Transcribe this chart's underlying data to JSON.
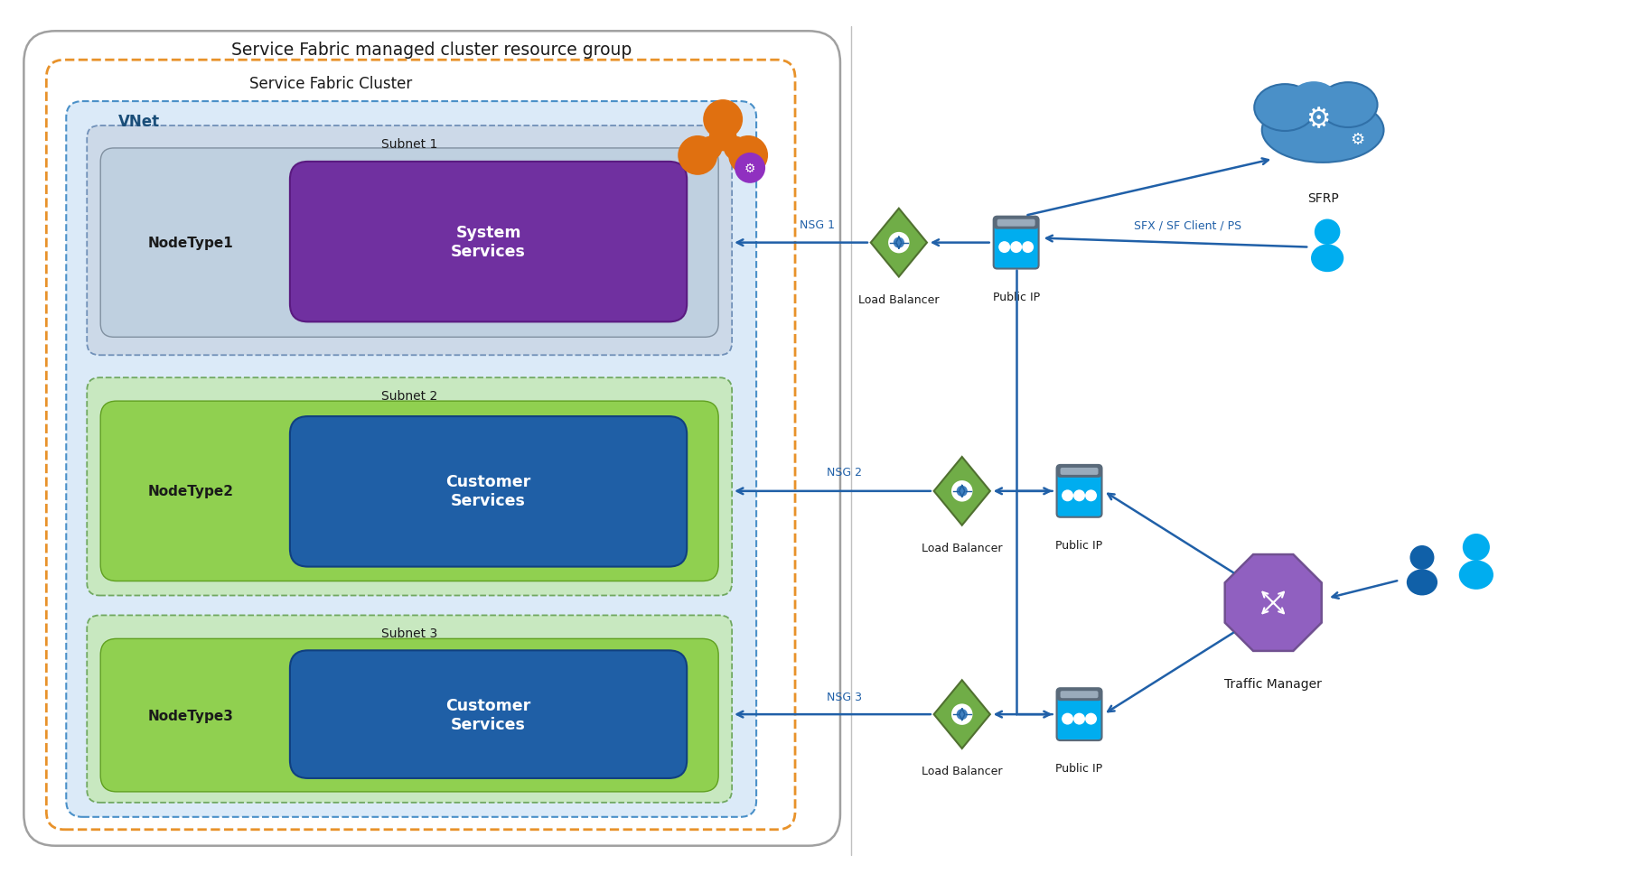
{
  "title": "Service Fabric managed cluster resource group",
  "sf_cluster_label": "Service Fabric Cluster",
  "vnet_label": "VNet",
  "subnet1_label": "Subnet 1",
  "subnet2_label": "Subnet 2",
  "subnet3_label": "Subnet 3",
  "nodetype1_label": "NodeType1",
  "nodetype2_label": "NodeType2",
  "nodetype3_label": "NodeType3",
  "system_services_label": "System\nServices",
  "customer_services_label": "Customer\nServices",
  "load_balancer_label": "Load Balancer",
  "public_ip_label": "Public IP",
  "sfrp_label": "SFRP",
  "traffic_manager_label": "Traffic Manager",
  "nsg1_label": "NSG 1",
  "nsg2_label": "NSG 2",
  "nsg3_label": "NSG 3",
  "sfx_label": "SFX / SF Client / PS",
  "bg_color": "#ffffff",
  "outer_box_bg": "#ffffff",
  "outer_box_edge": "#a0a0a0",
  "sf_cluster_edge": "#e8922a",
  "sf_cluster_bg": "#ffffff",
  "vnet_bg": "#dbeaf8",
  "vnet_edge": "#4a90c8",
  "subnet1_bg": "#ccd9e8",
  "subnet1_edge": "#7090b8",
  "subnet2_bg": "#c8e8c0",
  "subnet2_edge": "#70a860",
  "subnet3_bg": "#c8e8c0",
  "subnet3_edge": "#70a860",
  "nodetype1_bg": "#bfd0e0",
  "nodetype1_edge": "#8090a0",
  "nodetype23_bg": "#90d050",
  "nodetype23_edge": "#60a020",
  "system_svc_bg": "#7030a0",
  "system_svc_edge": "#5a1a80",
  "customer_svc_bg": "#1f5fa6",
  "customer_svc_edge": "#104080",
  "arrow_color": "#2060a8",
  "lb_green": "#70ad47",
  "lb_edge": "#507030",
  "pubip_body": "#00adef",
  "pubip_top": "#5a6a7a",
  "pubip_topbar": "#9aabbb",
  "sfrp_cloud_color": "#4a90c8",
  "sfrp_cloud_edge": "#3070a8",
  "tm_purple": "#9060c0",
  "tm_edge": "#705090",
  "user_cyan": "#00adef",
  "user_dark_blue": "#1060a8",
  "arm_orange": "#e07010",
  "arm_purple": "#9030c0"
}
